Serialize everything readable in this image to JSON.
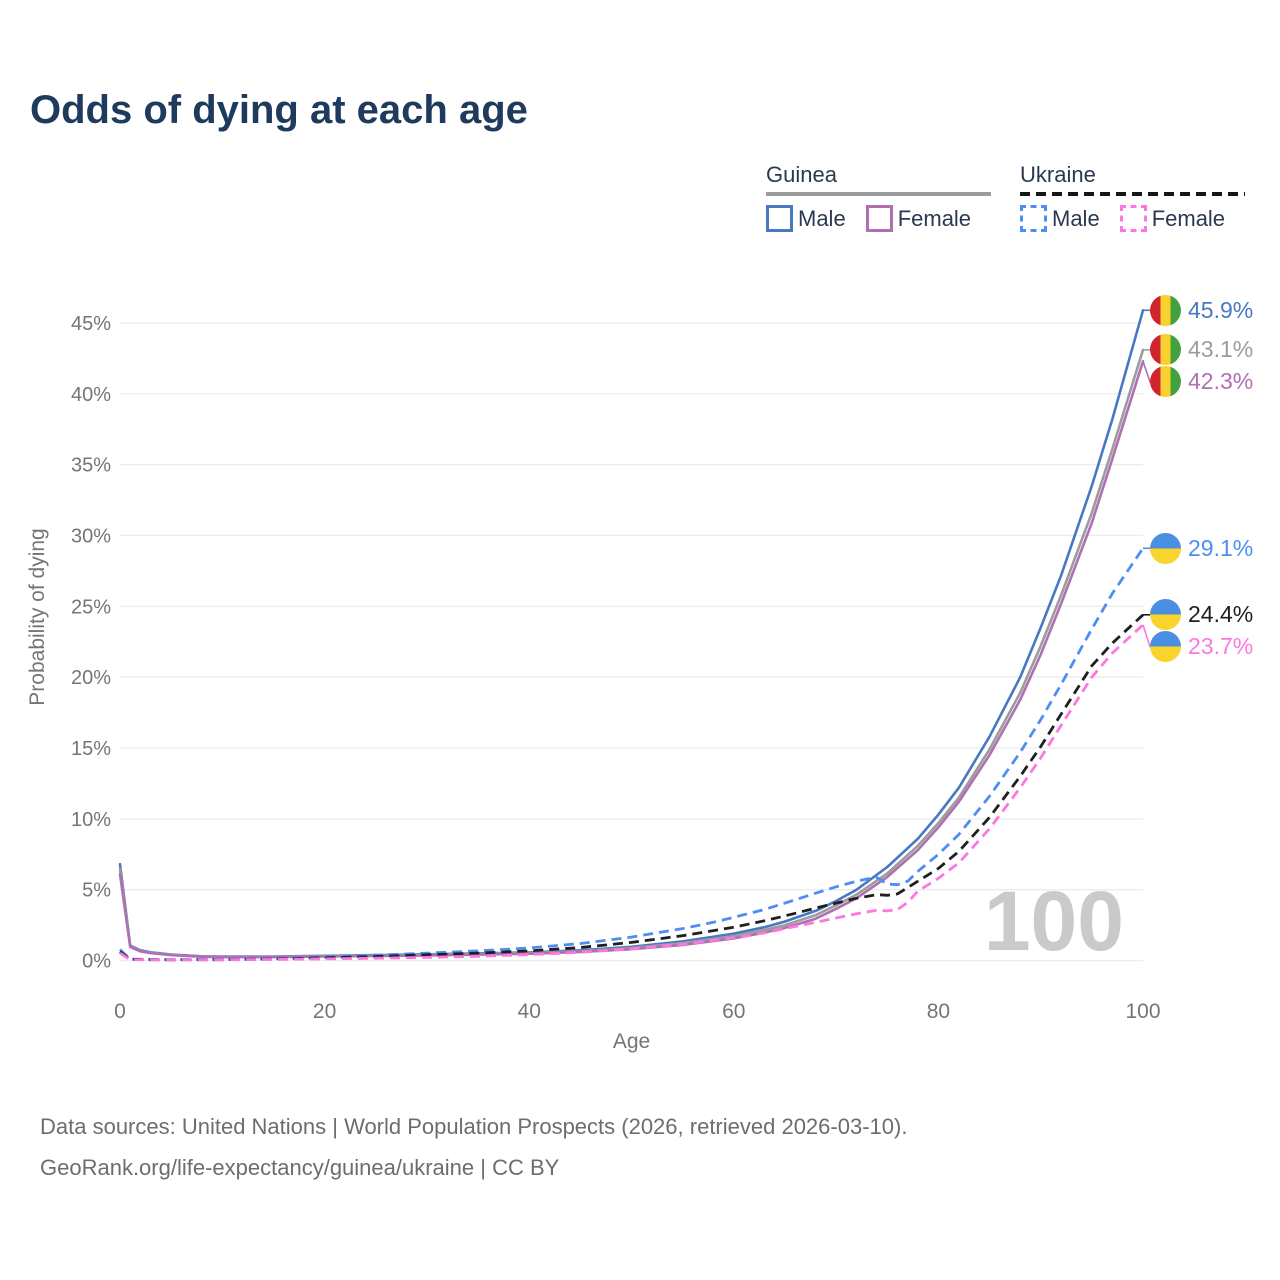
{
  "title": "Odds of dying at each age",
  "watermark": "100",
  "legend": {
    "groups": [
      {
        "title": "Guinea",
        "line_style": "solid",
        "underline_color": "#9c9c9c",
        "items": [
          {
            "label": "Male",
            "color": "#4878c2"
          },
          {
            "label": "Female",
            "color": "#b06fb3"
          }
        ]
      },
      {
        "title": "Ukraine",
        "line_style": "dashed",
        "underline_color": "#161616",
        "items": [
          {
            "label": "Male",
            "color": "#4d8ef5"
          },
          {
            "label": "Female",
            "color": "#fc78e0"
          }
        ]
      }
    ]
  },
  "axes": {
    "x": {
      "title": "Age",
      "ticks": [
        0,
        20,
        40,
        60,
        80,
        100
      ],
      "range": [
        0,
        100
      ]
    },
    "y": {
      "title": "Probability of dying",
      "ticks": [
        {
          "label": "0%",
          "value": 0
        },
        {
          "label": "5%",
          "value": 5
        },
        {
          "label": "10%",
          "value": 10
        },
        {
          "label": "15%",
          "value": 15
        },
        {
          "label": "20%",
          "value": 20
        },
        {
          "label": "25%",
          "value": 25
        },
        {
          "label": "30%",
          "value": 30
        },
        {
          "label": "35%",
          "value": 35
        },
        {
          "label": "40%",
          "value": 40
        },
        {
          "label": "45%",
          "value": 45
        }
      ],
      "range": [
        0,
        48
      ]
    }
  },
  "flags": {
    "guinea": {
      "orientation": "vertical",
      "colors": [
        "#d2242f",
        "#f8d12f",
        "#44a03f"
      ]
    },
    "ukraine": {
      "orientation": "horizontal",
      "colors": [
        "#4a8fe2",
        "#f9d42c"
      ]
    }
  },
  "footer": {
    "line1": "Data sources: United Nations | World Population Prospects (2026, retrieved 2026-03-10).",
    "line2": "GeoRank.org/life-expectancy/guinea/ukraine | CC BY"
  },
  "chart_data": {
    "type": "line",
    "title": "Odds of dying at each age",
    "xlabel": "Age",
    "ylabel": "Probability of dying",
    "xlim": [
      0,
      100
    ],
    "ylim": [
      0,
      48
    ],
    "grid": "horizontal",
    "legend_position": "top-right",
    "series": [
      {
        "id": "guinea-male",
        "name": "Guinea Male",
        "flag": "guinea",
        "dash": false,
        "color": "#4878c2",
        "end_label": "45.9%",
        "points": [
          [
            0,
            6.8
          ],
          [
            1,
            1.05
          ],
          [
            2,
            0.72
          ],
          [
            3,
            0.58
          ],
          [
            5,
            0.42
          ],
          [
            8,
            0.3
          ],
          [
            10,
            0.28
          ],
          [
            15,
            0.28
          ],
          [
            20,
            0.33
          ],
          [
            25,
            0.38
          ],
          [
            30,
            0.44
          ],
          [
            35,
            0.5
          ],
          [
            40,
            0.57
          ],
          [
            45,
            0.72
          ],
          [
            50,
            0.97
          ],
          [
            55,
            1.35
          ],
          [
            60,
            1.9
          ],
          [
            63,
            2.35
          ],
          [
            65,
            2.75
          ],
          [
            68,
            3.5
          ],
          [
            70,
            4.2
          ],
          [
            72,
            5.0
          ],
          [
            75,
            6.6
          ],
          [
            78,
            8.6
          ],
          [
            80,
            10.3
          ],
          [
            82,
            12.2
          ],
          [
            85,
            15.8
          ],
          [
            88,
            20.0
          ],
          [
            90,
            23.5
          ],
          [
            92,
            27.2
          ],
          [
            95,
            33.5
          ],
          [
            97,
            38.2
          ],
          [
            100,
            45.9
          ]
        ]
      },
      {
        "id": "guinea-both",
        "name": "Guinea (both sexes)",
        "flag": "guinea",
        "dash": false,
        "color": "#9c9c9c",
        "end_label": "43.1%",
        "points": [
          [
            0,
            6.45
          ],
          [
            1,
            1.0
          ],
          [
            2,
            0.68
          ],
          [
            3,
            0.55
          ],
          [
            5,
            0.4
          ],
          [
            8,
            0.28
          ],
          [
            10,
            0.26
          ],
          [
            15,
            0.26
          ],
          [
            20,
            0.31
          ],
          [
            25,
            0.35
          ],
          [
            30,
            0.4
          ],
          [
            35,
            0.46
          ],
          [
            40,
            0.52
          ],
          [
            45,
            0.65
          ],
          [
            50,
            0.88
          ],
          [
            55,
            1.22
          ],
          [
            60,
            1.72
          ],
          [
            63,
            2.15
          ],
          [
            65,
            2.5
          ],
          [
            68,
            3.2
          ],
          [
            70,
            3.9
          ],
          [
            72,
            4.65
          ],
          [
            75,
            6.15
          ],
          [
            78,
            8.1
          ],
          [
            80,
            9.7
          ],
          [
            82,
            11.5
          ],
          [
            85,
            14.9
          ],
          [
            88,
            18.9
          ],
          [
            90,
            22.2
          ],
          [
            92,
            25.8
          ],
          [
            95,
            31.6
          ],
          [
            97,
            36.1
          ],
          [
            100,
            43.1
          ]
        ]
      },
      {
        "id": "guinea-female",
        "name": "Guinea Female",
        "flag": "guinea",
        "dash": false,
        "color": "#b06fb3",
        "end_label": "42.3%",
        "points": [
          [
            0,
            6.1
          ],
          [
            1,
            0.95
          ],
          [
            2,
            0.64
          ],
          [
            3,
            0.52
          ],
          [
            5,
            0.38
          ],
          [
            8,
            0.26
          ],
          [
            10,
            0.24
          ],
          [
            15,
            0.24
          ],
          [
            20,
            0.28
          ],
          [
            25,
            0.32
          ],
          [
            30,
            0.36
          ],
          [
            35,
            0.42
          ],
          [
            40,
            0.48
          ],
          [
            45,
            0.6
          ],
          [
            50,
            0.8
          ],
          [
            55,
            1.1
          ],
          [
            60,
            1.56
          ],
          [
            63,
            1.97
          ],
          [
            65,
            2.3
          ],
          [
            68,
            2.95
          ],
          [
            70,
            3.65
          ],
          [
            72,
            4.4
          ],
          [
            75,
            5.9
          ],
          [
            78,
            7.8
          ],
          [
            80,
            9.4
          ],
          [
            82,
            11.2
          ],
          [
            85,
            14.5
          ],
          [
            88,
            18.4
          ],
          [
            90,
            21.6
          ],
          [
            92,
            25.2
          ],
          [
            95,
            30.9
          ],
          [
            97,
            35.4
          ],
          [
            100,
            42.3
          ]
        ]
      },
      {
        "id": "ukraine-male",
        "name": "Ukraine Male",
        "flag": "ukraine",
        "dash": true,
        "color": "#4d8ef5",
        "end_label": "29.1%",
        "points": [
          [
            0,
            0.78
          ],
          [
            1,
            0.1
          ],
          [
            3,
            0.07
          ],
          [
            5,
            0.06
          ],
          [
            10,
            0.08
          ],
          [
            15,
            0.13
          ],
          [
            20,
            0.26
          ],
          [
            25,
            0.38
          ],
          [
            30,
            0.52
          ],
          [
            35,
            0.68
          ],
          [
            40,
            0.88
          ],
          [
            45,
            1.2
          ],
          [
            50,
            1.65
          ],
          [
            55,
            2.25
          ],
          [
            58,
            2.7
          ],
          [
            60,
            3.05
          ],
          [
            63,
            3.6
          ],
          [
            65,
            4.05
          ],
          [
            68,
            4.75
          ],
          [
            70,
            5.2
          ],
          [
            72,
            5.6
          ],
          [
            73,
            5.75
          ],
          [
            74,
            5.85
          ],
          [
            75,
            5.4
          ],
          [
            76,
            5.35
          ],
          [
            77,
            5.6
          ],
          [
            78,
            6.3
          ],
          [
            80,
            7.5
          ],
          [
            82,
            8.9
          ],
          [
            85,
            11.6
          ],
          [
            88,
            14.7
          ],
          [
            90,
            17.0
          ],
          [
            92,
            19.5
          ],
          [
            95,
            23.4
          ],
          [
            97,
            25.9
          ],
          [
            100,
            29.1
          ]
        ]
      },
      {
        "id": "ukraine-both",
        "name": "Ukraine (both sexes)",
        "flag": "ukraine",
        "dash": true,
        "color": "#1f1f1f",
        "end_label": "24.4%",
        "points": [
          [
            0,
            0.62
          ],
          [
            1,
            0.08
          ],
          [
            3,
            0.06
          ],
          [
            5,
            0.05
          ],
          [
            10,
            0.06
          ],
          [
            15,
            0.1
          ],
          [
            20,
            0.19
          ],
          [
            25,
            0.28
          ],
          [
            30,
            0.4
          ],
          [
            35,
            0.52
          ],
          [
            40,
            0.68
          ],
          [
            45,
            0.92
          ],
          [
            50,
            1.28
          ],
          [
            55,
            1.75
          ],
          [
            60,
            2.35
          ],
          [
            63,
            2.8
          ],
          [
            65,
            3.15
          ],
          [
            68,
            3.7
          ],
          [
            70,
            4.05
          ],
          [
            72,
            4.4
          ],
          [
            74,
            4.65
          ],
          [
            75,
            4.6
          ],
          [
            76,
            4.7
          ],
          [
            78,
            5.6
          ],
          [
            80,
            6.5
          ],
          [
            82,
            7.7
          ],
          [
            85,
            10.1
          ],
          [
            88,
            13.0
          ],
          [
            90,
            15.1
          ],
          [
            92,
            17.4
          ],
          [
            95,
            20.8
          ],
          [
            97,
            22.4
          ],
          [
            100,
            24.4
          ]
        ]
      },
      {
        "id": "ukraine-female",
        "name": "Ukraine Female",
        "flag": "ukraine",
        "dash": true,
        "color": "#fc78e0",
        "end_label": "23.7%",
        "points": [
          [
            0,
            0.52
          ],
          [
            1,
            0.06
          ],
          [
            3,
            0.05
          ],
          [
            5,
            0.04
          ],
          [
            10,
            0.05
          ],
          [
            15,
            0.07
          ],
          [
            20,
            0.11
          ],
          [
            25,
            0.16
          ],
          [
            30,
            0.22
          ],
          [
            35,
            0.3
          ],
          [
            40,
            0.42
          ],
          [
            45,
            0.58
          ],
          [
            50,
            0.82
          ],
          [
            55,
            1.15
          ],
          [
            60,
            1.6
          ],
          [
            63,
            1.95
          ],
          [
            65,
            2.25
          ],
          [
            68,
            2.7
          ],
          [
            70,
            3.0
          ],
          [
            72,
            3.3
          ],
          [
            74,
            3.55
          ],
          [
            75,
            3.5
          ],
          [
            76,
            3.6
          ],
          [
            77,
            4.1
          ],
          [
            78,
            4.9
          ],
          [
            80,
            5.8
          ],
          [
            82,
            6.9
          ],
          [
            85,
            9.3
          ],
          [
            88,
            12.2
          ],
          [
            90,
            14.3
          ],
          [
            92,
            16.6
          ],
          [
            95,
            20.0
          ],
          [
            97,
            21.7
          ],
          [
            100,
            23.7
          ]
        ]
      }
    ]
  }
}
